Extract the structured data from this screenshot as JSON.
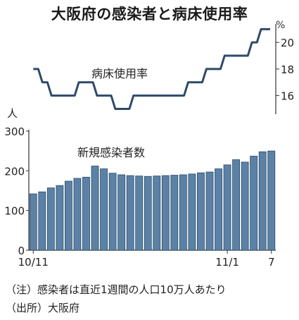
{
  "title": "大阪府の感染者と病床使用率",
  "notes": [
    "（注）感染者は直近1週間の人口10万人あたり",
    "（出所）大阪府"
  ],
  "colors": {
    "bar_fill": "#5b82a6",
    "bar_stroke": "#2b4a66",
    "line": "#2e4a6b",
    "axis": "#333333"
  },
  "chart_data": [
    {
      "type": "line",
      "series": [
        {
          "name": "病床使用率",
          "values": [
            18,
            17,
            16,
            16,
            16,
            17,
            17,
            16,
            16,
            15,
            15,
            16,
            16,
            16,
            16,
            16,
            16,
            17,
            17,
            18,
            18,
            19,
            19,
            19,
            20,
            21,
            21
          ]
        }
      ],
      "unit": "%",
      "yticks": [
        "16",
        "18",
        "20"
      ],
      "ylim": [
        14.6,
        21.6
      ]
    },
    {
      "type": "bar",
      "series": [
        {
          "name": "新規感染者数",
          "values": [
            142,
            147,
            157,
            163,
            174,
            181,
            184,
            212,
            205,
            194,
            190,
            188,
            187,
            186,
            187,
            188,
            189,
            190,
            192,
            195,
            197,
            205,
            215,
            228,
            222,
            237,
            248,
            250
          ]
        }
      ],
      "unit": "人",
      "yticks": [
        "0",
        "100",
        "200",
        "300"
      ],
      "ylim": [
        0,
        300
      ],
      "xtick_labels": [
        {
          "index": 0,
          "label": "10/11"
        },
        {
          "index": 22,
          "label": "11/1"
        },
        {
          "index": 27,
          "label": "7"
        }
      ]
    }
  ]
}
